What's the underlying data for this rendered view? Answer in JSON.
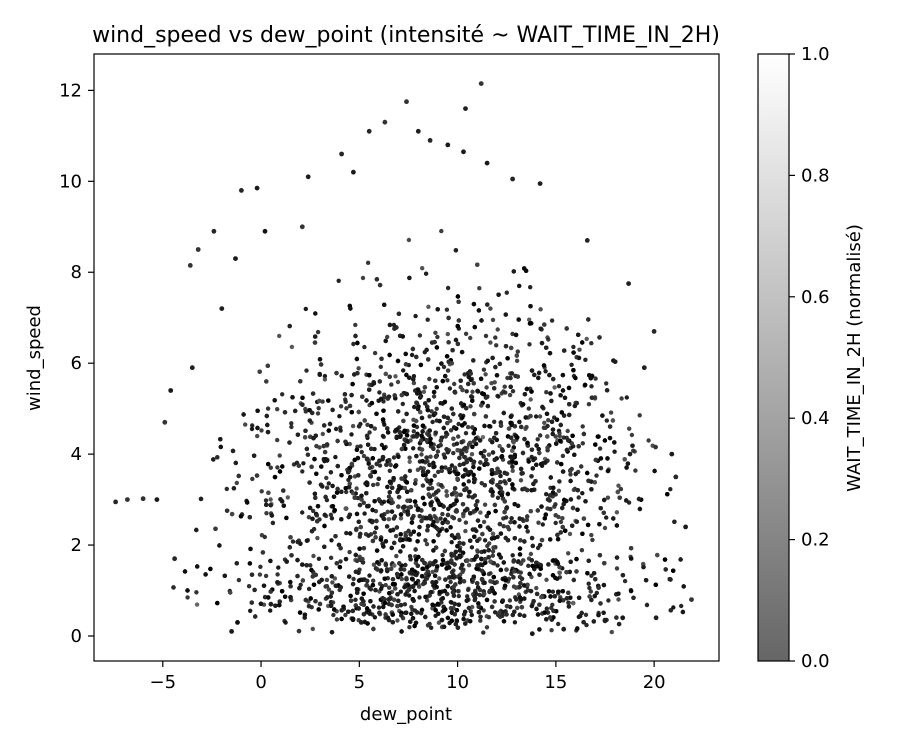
{
  "chart_data": {
    "type": "scatter",
    "title": "wind_speed vs dew_point (intensité ~ WAIT_TIME_IN_2H)",
    "xlabel": "dew_point",
    "ylabel": "wind_speed",
    "xlim": [
      -8.5,
      23.3
    ],
    "ylim": [
      -0.55,
      12.8
    ],
    "xticks": [
      "−5",
      "0",
      "5",
      "10",
      "15",
      "20"
    ],
    "xtick_values": [
      -5,
      0,
      5,
      10,
      15,
      20
    ],
    "yticks": [
      "0",
      "2",
      "4",
      "6",
      "8",
      "10",
      "12"
    ],
    "ytick_values": [
      0,
      2,
      4,
      6,
      8,
      10,
      12
    ],
    "grid": false,
    "colormap": "gray",
    "colorbar": {
      "label": "WAIT_TIME_IN_2H (normalisé)",
      "range": [
        0,
        1
      ],
      "ticks": [
        "0.0",
        "0.2",
        "0.4",
        "0.6",
        "0.8",
        "1.0"
      ],
      "tick_values": [
        0,
        0.2,
        0.4,
        0.6,
        0.8,
        1.0
      ],
      "alpha": 0.6
    },
    "point_color_note_values_range": [
      0.0,
      0.35
    ],
    "series": [
      {
        "points": [
          {
            "x": -7.4,
            "y": 2.95,
            "c": 0.15
          },
          {
            "x": -6.8,
            "y": 3.0,
            "c": 0.2
          },
          {
            "x": -6.0,
            "y": 3.02,
            "c": 0.18
          },
          {
            "x": -5.3,
            "y": 3.0,
            "c": 0.1
          },
          {
            "x": -4.6,
            "y": 5.4,
            "c": 0.1
          },
          {
            "x": -4.9,
            "y": 4.7,
            "c": 0.2
          },
          {
            "x": -4.4,
            "y": 1.7,
            "c": 0.15
          },
          {
            "x": -3.6,
            "y": 8.15,
            "c": 0.2
          },
          {
            "x": -3.5,
            "y": 5.9,
            "c": 0.12
          },
          {
            "x": -3.2,
            "y": 8.5,
            "c": 0.2
          },
          {
            "x": -2.4,
            "y": 8.9,
            "c": 0.15
          },
          {
            "x": -2.0,
            "y": 7.2,
            "c": 0.12
          },
          {
            "x": -1.5,
            "y": 0.1,
            "c": 0.1
          },
          {
            "x": -1.2,
            "y": 0.3,
            "c": 0.05
          },
          {
            "x": -1.3,
            "y": 8.3,
            "c": 0.1
          },
          {
            "x": -1.0,
            "y": 9.8,
            "c": 0.15
          },
          {
            "x": -0.2,
            "y": 9.85,
            "c": 0.1
          },
          {
            "x": 0.2,
            "y": 8.9,
            "c": 0.08
          },
          {
            "x": 0.5,
            "y": 0.7,
            "c": 0.12
          },
          {
            "x": 1.5,
            "y": 0.85,
            "c": 0.1
          },
          {
            "x": 2.1,
            "y": 9.0,
            "c": 0.2
          },
          {
            "x": 2.4,
            "y": 10.1,
            "c": 0.12
          },
          {
            "x": 4.1,
            "y": 10.6,
            "c": 0.15
          },
          {
            "x": 4.7,
            "y": 10.2,
            "c": 0.1
          },
          {
            "x": 5.1,
            "y": 0.3,
            "c": 0.12
          },
          {
            "x": 5.5,
            "y": 11.1,
            "c": 0.15
          },
          {
            "x": 6.3,
            "y": 11.3,
            "c": 0.2
          },
          {
            "x": 7.4,
            "y": 11.75,
            "c": 0.2
          },
          {
            "x": 8.0,
            "y": 11.1,
            "c": 0.12
          },
          {
            "x": 8.6,
            "y": 10.9,
            "c": 0.15
          },
          {
            "x": 9.2,
            "y": 0.35,
            "c": 0.1
          },
          {
            "x": 9.5,
            "y": 10.8,
            "c": 0.1
          },
          {
            "x": 10.3,
            "y": 10.65,
            "c": 0.1
          },
          {
            "x": 10.4,
            "y": 11.6,
            "c": 0.12
          },
          {
            "x": 11.2,
            "y": 12.15,
            "c": 0.2
          },
          {
            "x": 11.5,
            "y": 10.4,
            "c": 0.1
          },
          {
            "x": 12.8,
            "y": 10.05,
            "c": 0.15
          },
          {
            "x": 14.2,
            "y": 9.95,
            "c": 0.12
          },
          {
            "x": 13.8,
            "y": 0.05,
            "c": 0.1
          },
          {
            "x": 15.4,
            "y": 0.15,
            "c": 0.12
          },
          {
            "x": 16.6,
            "y": 8.7,
            "c": 0.15
          },
          {
            "x": 17.5,
            "y": 0.35,
            "c": 0.12
          },
          {
            "x": 18.4,
            "y": 0.4,
            "c": 0.1
          },
          {
            "x": 18.7,
            "y": 7.75,
            "c": 0.12
          },
          {
            "x": 19.5,
            "y": 5.9,
            "c": 0.12
          },
          {
            "x": 20.0,
            "y": 6.7,
            "c": 0.15
          },
          {
            "x": 20.1,
            "y": 0.4,
            "c": 0.12
          },
          {
            "x": 20.9,
            "y": 4.0,
            "c": 0.1
          },
          {
            "x": 21.1,
            "y": 3.5,
            "c": 0.15
          },
          {
            "x": 21.6,
            "y": 2.4,
            "c": 0.1
          },
          {
            "x": 21.9,
            "y": 0.8,
            "c": 0.2
          }
        ]
      }
    ]
  }
}
